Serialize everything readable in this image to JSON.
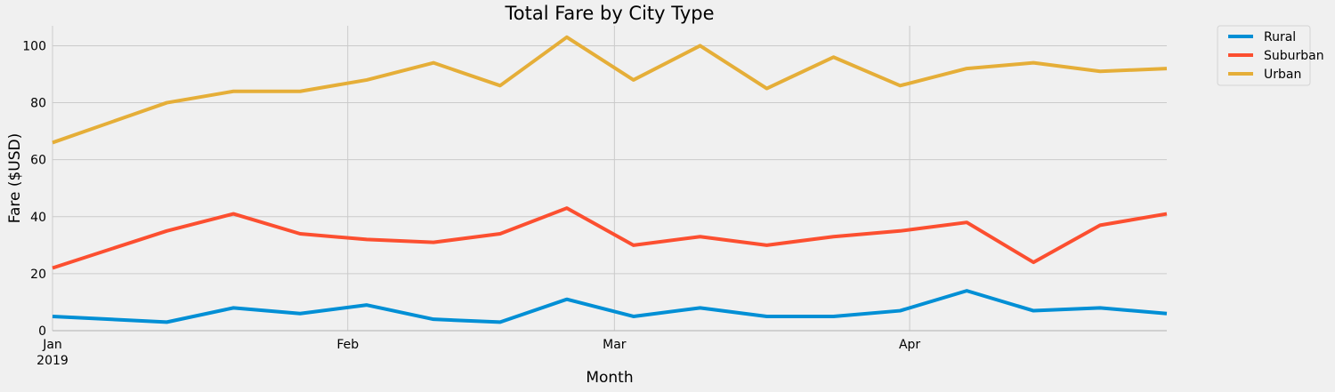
{
  "chart_data": {
    "type": "line",
    "title": "Total Fare by City Type",
    "xlabel": "Month",
    "ylabel": "Fare ($USD)",
    "x": [
      "2019-01-06",
      "2019-01-13",
      "2019-01-20",
      "2019-01-27",
      "2019-02-03",
      "2019-02-10",
      "2019-02-17",
      "2019-02-24",
      "2019-03-03",
      "2019-03-10",
      "2019-03-17",
      "2019-03-24",
      "2019-03-31",
      "2019-04-07",
      "2019-04-14",
      "2019-04-21",
      "2019-04-28"
    ],
    "x_ticks": [
      {
        "label": "Jan",
        "sublabel": "2019",
        "date": "2019-01-01"
      },
      {
        "label": "Feb",
        "sublabel": "",
        "date": "2019-02-01"
      },
      {
        "label": "Mar",
        "sublabel": "",
        "date": "2019-03-01"
      },
      {
        "label": "Apr",
        "sublabel": "",
        "date": "2019-04-01"
      }
    ],
    "xlim": [
      "2019-01-01",
      "2019-04-28"
    ],
    "ylim": [
      0,
      107
    ],
    "y_ticks": [
      0,
      20,
      40,
      60,
      80,
      100
    ],
    "grid": true,
    "legend_position": "outside-top-right",
    "series": [
      {
        "name": "Rural",
        "color": "#008fd5",
        "values": [
          5,
          3,
          8,
          6,
          9,
          4,
          3,
          11,
          5,
          8,
          5,
          5,
          7,
          14,
          7,
          8,
          6
        ]
      },
      {
        "name": "Suburban",
        "color": "#fc4f30",
        "values": [
          22,
          35,
          41,
          34,
          32,
          31,
          34,
          43,
          30,
          33,
          30,
          33,
          35,
          38,
          24,
          37,
          41
        ]
      },
      {
        "name": "Urban",
        "color": "#e5ae38",
        "values": [
          66,
          80,
          84,
          84,
          88,
          94,
          86,
          103,
          88,
          100,
          85,
          96,
          86,
          92,
          94,
          91,
          92
        ]
      }
    ]
  }
}
